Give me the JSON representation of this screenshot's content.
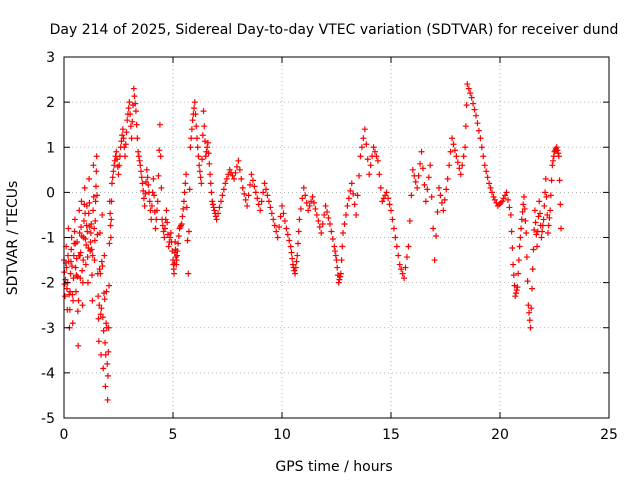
{
  "colors": {
    "series": "#ff0000",
    "grid": "#a0a0a0",
    "axis": "#000000",
    "background": "#ffffff"
  },
  "chart_data": {
    "type": "scatter",
    "title": "Day 214 of 2025, Sidereal Day-to-day VTEC variation (SDTVAR) for receiver dund",
    "xlabel": "GPS time / hours",
    "ylabel": "SDTVAR / TECUs",
    "xlim": [
      0,
      25
    ],
    "ylim": [
      -5,
      3
    ],
    "xticks": [
      0,
      5,
      10,
      15,
      20,
      25
    ],
    "yticks": [
      -5,
      -4,
      -3,
      -2,
      -1,
      0,
      1,
      2,
      3
    ],
    "grid": true,
    "marker": "+",
    "series": [
      {
        "name": "SDTVAR",
        "points": [
          [
            0.0,
            -1.5
          ],
          [
            0.05,
            -2.3
          ],
          [
            0.1,
            -1.2
          ],
          [
            0.15,
            -2.6
          ],
          [
            0.2,
            -0.8
          ],
          [
            0.25,
            -3.0
          ],
          [
            0.3,
            -1.8
          ],
          [
            0.35,
            -1.0
          ],
          [
            0.4,
            -2.9
          ],
          [
            0.45,
            -1.4
          ],
          [
            0.5,
            -0.6
          ],
          [
            0.55,
            -2.2
          ],
          [
            0.6,
            -1.1
          ],
          [
            0.65,
            -3.4
          ],
          [
            0.7,
            -0.4
          ],
          [
            0.75,
            -1.9
          ],
          [
            0.8,
            -0.2
          ],
          [
            0.85,
            -2.5
          ],
          [
            0.9,
            -1.0
          ],
          [
            0.95,
            0.1
          ],
          [
            1.0,
            -1.6
          ],
          [
            1.05,
            -0.3
          ],
          [
            1.1,
            -2.0
          ],
          [
            1.15,
            0.3
          ],
          [
            1.2,
            -1.3
          ],
          [
            1.25,
            -0.7
          ],
          [
            1.3,
            -2.4
          ],
          [
            1.35,
            0.6
          ],
          [
            1.4,
            -1.5
          ],
          [
            1.45,
            -0.2
          ],
          [
            1.5,
            0.8
          ],
          [
            1.55,
            -1.8
          ],
          [
            1.6,
            -3.3
          ],
          [
            1.65,
            -0.9
          ],
          [
            1.7,
            -3.6
          ],
          [
            1.75,
            -0.5
          ],
          [
            1.8,
            -3.9
          ],
          [
            1.85,
            -1.4
          ],
          [
            1.9,
            -4.3
          ],
          [
            1.95,
            -2.2
          ],
          [
            2.0,
            -4.6
          ],
          [
            2.05,
            -3.0
          ],
          [
            2.1,
            -0.2
          ],
          [
            2.15,
            -1.0
          ],
          [
            2.2,
            0.2
          ],
          [
            2.3,
            0.6
          ],
          [
            2.4,
            0.9
          ],
          [
            2.5,
            0.4
          ],
          [
            2.6,
            1.0
          ],
          [
            2.7,
            1.4
          ],
          [
            2.8,
            0.8
          ],
          [
            2.9,
            1.6
          ],
          [
            3.0,
            2.0
          ],
          [
            3.1,
            1.2
          ],
          [
            3.2,
            2.3
          ],
          [
            3.3,
            1.8
          ],
          [
            3.4,
            0.9
          ],
          [
            3.5,
            0.6
          ],
          [
            3.6,
            0.2
          ],
          [
            3.7,
            -0.3
          ],
          [
            3.8,
            0.5
          ],
          [
            3.9,
            0.0
          ],
          [
            4.0,
            -0.6
          ],
          [
            4.1,
            0.3
          ],
          [
            4.2,
            -0.8
          ],
          [
            4.3,
            -0.2
          ],
          [
            4.4,
            1.5
          ],
          [
            4.5,
            -0.6
          ],
          [
            4.6,
            -1.0
          ],
          [
            4.7,
            -0.4
          ],
          [
            4.8,
            -1.2
          ],
          [
            4.9,
            -0.9
          ],
          [
            5.0,
            -1.5
          ],
          [
            5.05,
            -1.8
          ],
          [
            5.1,
            -1.1
          ],
          [
            5.15,
            -1.6
          ],
          [
            5.2,
            -1.3
          ],
          [
            5.3,
            -0.8
          ],
          [
            5.4,
            -0.7
          ],
          [
            5.5,
            -0.2
          ],
          [
            5.6,
            0.4
          ],
          [
            5.7,
            -1.8
          ],
          [
            5.8,
            1.0
          ],
          [
            5.9,
            1.6
          ],
          [
            6.0,
            2.0
          ],
          [
            6.1,
            1.2
          ],
          [
            6.2,
            0.6
          ],
          [
            6.3,
            0.2
          ],
          [
            6.4,
            1.8
          ],
          [
            6.5,
            0.8
          ],
          [
            6.6,
            1.1
          ],
          [
            6.7,
            0.4
          ],
          [
            6.8,
            -0.2
          ],
          [
            6.9,
            -0.4
          ],
          [
            7.0,
            -0.6
          ],
          [
            7.2,
            -0.2
          ],
          [
            7.4,
            0.2
          ],
          [
            7.6,
            0.5
          ],
          [
            7.8,
            0.3
          ],
          [
            8.0,
            0.7
          ],
          [
            8.2,
            0.1
          ],
          [
            8.4,
            -0.3
          ],
          [
            8.6,
            0.4
          ],
          [
            8.8,
            0.0
          ],
          [
            9.0,
            -0.4
          ],
          [
            9.2,
            0.2
          ],
          [
            9.4,
            -0.2
          ],
          [
            9.6,
            -0.6
          ],
          [
            9.8,
            -1.0
          ],
          [
            10.0,
            -0.3
          ],
          [
            10.2,
            -0.8
          ],
          [
            10.4,
            -1.2
          ],
          [
            10.5,
            -1.6
          ],
          [
            10.6,
            -1.8
          ],
          [
            10.7,
            -1.4
          ],
          [
            10.8,
            -0.6
          ],
          [
            11.0,
            0.1
          ],
          [
            11.2,
            -0.4
          ],
          [
            11.4,
            -0.1
          ],
          [
            11.6,
            -0.5
          ],
          [
            11.8,
            -0.9
          ],
          [
            12.0,
            -0.3
          ],
          [
            12.2,
            -0.7
          ],
          [
            12.4,
            -1.2
          ],
          [
            12.5,
            -1.5
          ],
          [
            12.6,
            -2.0
          ],
          [
            12.7,
            -1.8
          ],
          [
            12.8,
            -0.9
          ],
          [
            13.0,
            -0.3
          ],
          [
            13.2,
            0.2
          ],
          [
            13.4,
            -0.5
          ],
          [
            13.6,
            0.8
          ],
          [
            13.8,
            1.4
          ],
          [
            14.0,
            0.4
          ],
          [
            14.2,
            1.0
          ],
          [
            14.4,
            0.7
          ],
          [
            14.6,
            -0.2
          ],
          [
            14.8,
            0.0
          ],
          [
            15.0,
            -0.4
          ],
          [
            15.2,
            -1.0
          ],
          [
            15.4,
            -1.6
          ],
          [
            15.6,
            -1.9
          ],
          [
            15.8,
            -1.2
          ],
          [
            16.0,
            0.5
          ],
          [
            16.2,
            0.1
          ],
          [
            16.4,
            0.9
          ],
          [
            16.6,
            -0.2
          ],
          [
            16.8,
            0.6
          ],
          [
            17.0,
            -1.5
          ],
          [
            17.2,
            0.1
          ],
          [
            17.4,
            -0.4
          ],
          [
            17.6,
            0.3
          ],
          [
            17.8,
            1.2
          ],
          [
            18.0,
            0.8
          ],
          [
            18.2,
            0.4
          ],
          [
            18.4,
            1.0
          ],
          [
            18.5,
            2.4
          ],
          [
            18.7,
            2.1
          ],
          [
            18.9,
            1.7
          ],
          [
            19.1,
            1.2
          ],
          [
            19.3,
            0.6
          ],
          [
            19.5,
            0.2
          ],
          [
            19.7,
            -0.1
          ],
          [
            19.9,
            -0.3
          ],
          [
            20.1,
            -0.2
          ],
          [
            20.3,
            0.0
          ],
          [
            20.5,
            -0.5
          ],
          [
            20.6,
            -1.6
          ],
          [
            20.7,
            -2.3
          ],
          [
            20.8,
            -2.1
          ],
          [
            20.9,
            -1.2
          ],
          [
            21.0,
            -0.6
          ],
          [
            21.1,
            -0.1
          ],
          [
            21.2,
            -0.9
          ],
          [
            21.3,
            -2.5
          ],
          [
            21.4,
            -3.0
          ],
          [
            21.5,
            -1.7
          ],
          [
            21.6,
            -0.4
          ],
          [
            21.7,
            -1.2
          ],
          [
            21.8,
            -0.2
          ],
          [
            21.9,
            -1.0
          ],
          [
            22.0,
            -0.6
          ],
          [
            22.1,
            0.3
          ],
          [
            22.2,
            -0.9
          ],
          [
            22.3,
            -0.4
          ],
          [
            22.4,
            0.6
          ],
          [
            22.5,
            0.9
          ],
          [
            22.6,
            1.0
          ],
          [
            22.7,
            0.8
          ],
          [
            22.8,
            -0.8
          ]
        ]
      }
    ]
  }
}
